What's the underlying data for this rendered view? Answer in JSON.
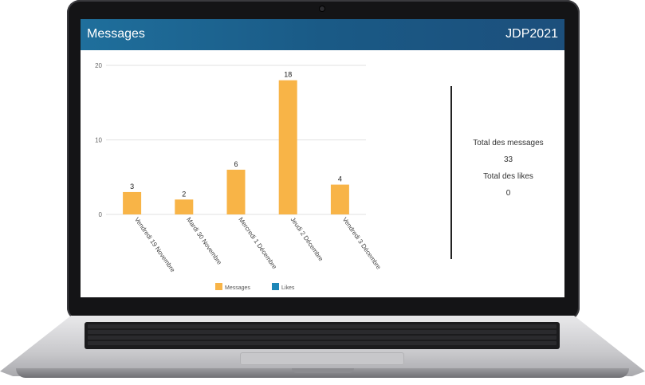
{
  "header": {
    "title": "Messages",
    "brand": "JDP2021"
  },
  "stats": {
    "total_messages_label": "Total des messages",
    "total_messages_value": "33",
    "total_likes_label": "Total des likes",
    "total_likes_value": "0"
  },
  "chart_data": {
    "type": "bar",
    "categories": [
      "Vendredi 19 Novembre",
      "Mardi 30 Novembre",
      "Mercredi 1 Décembre",
      "Jeudi 2 Décembre",
      "Vendredi 3 Décembre"
    ],
    "series": [
      {
        "name": "Messages",
        "values": [
          3,
          2,
          6,
          18,
          4
        ],
        "color": "#f8b447"
      },
      {
        "name": "Likes",
        "values": [
          0,
          0,
          0,
          0,
          0
        ],
        "color": "#1e87b8"
      }
    ],
    "yticks": [
      0,
      10,
      20
    ],
    "ylim": [
      0,
      20
    ],
    "legend_position": "bottom",
    "grid": true,
    "data_labels": true
  }
}
